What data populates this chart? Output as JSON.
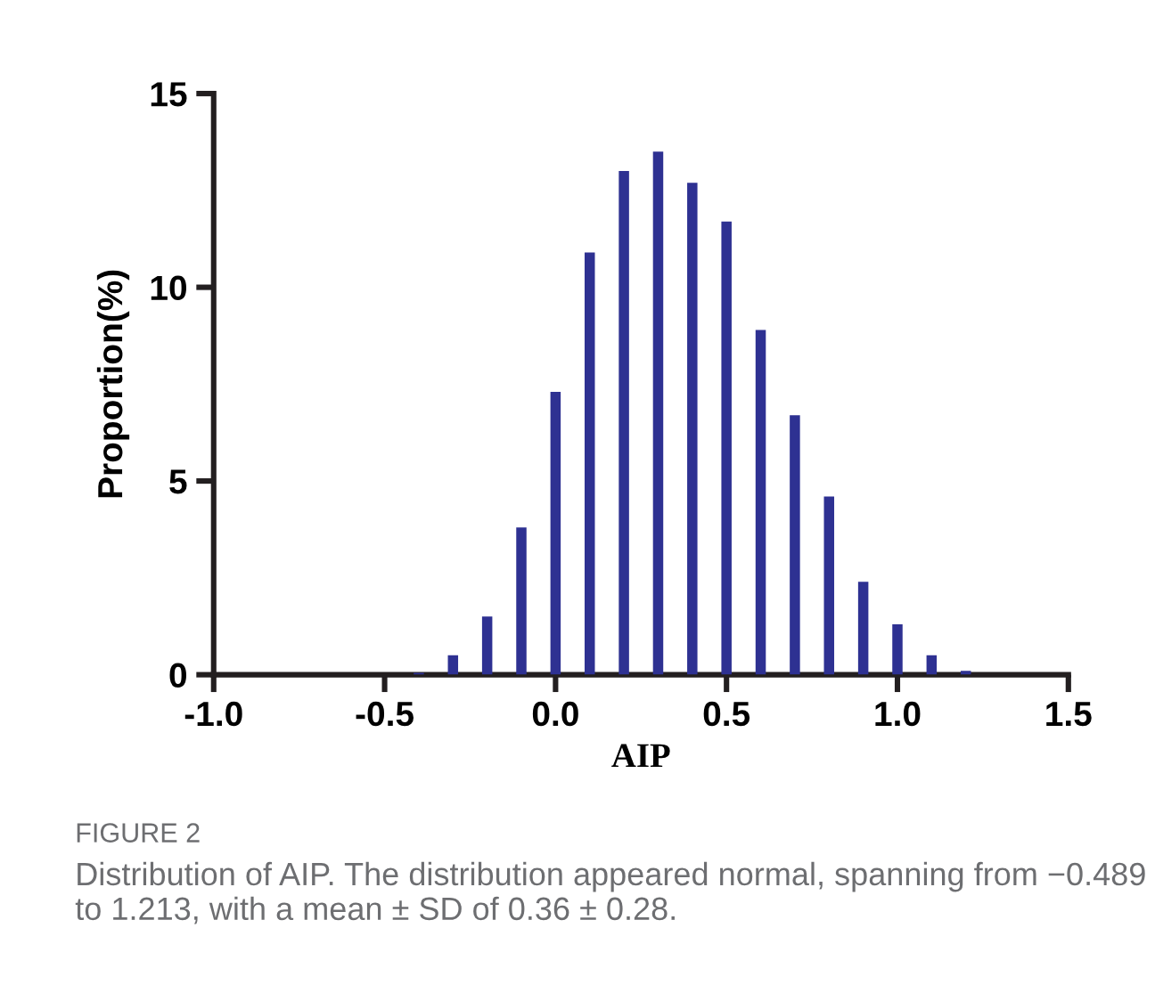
{
  "chart_data": {
    "type": "bar",
    "xlabel": "AIP",
    "ylabel": "Proportion(%)",
    "x": [
      -0.4,
      -0.3,
      -0.2,
      -0.1,
      0.0,
      0.1,
      0.2,
      0.3,
      0.4,
      0.5,
      0.6,
      0.7,
      0.8,
      0.9,
      1.0,
      1.1,
      1.2
    ],
    "values": [
      0.05,
      0.5,
      1.5,
      3.8,
      7.3,
      10.9,
      13.0,
      13.5,
      12.7,
      11.7,
      8.9,
      6.7,
      4.6,
      2.4,
      1.3,
      0.5,
      0.1
    ],
    "color": "#2e3192",
    "xlim": [
      -1.0,
      1.5
    ],
    "xticks": [
      {
        "value": -1.0,
        "label": "-1.0"
      },
      {
        "value": -0.5,
        "label": "-0.5"
      },
      {
        "value": 0.0,
        "label": "0.0"
      },
      {
        "value": 0.5,
        "label": "0.5"
      },
      {
        "value": 1.0,
        "label": "1.0"
      },
      {
        "value": 1.5,
        "label": "1.5"
      }
    ],
    "ylim": [
      0,
      15
    ],
    "yticks": [
      0,
      5,
      10,
      15
    ],
    "grid": false,
    "legend": false,
    "annotations": [
      "FIGURE 2",
      "Distribution of AIP. The distribution appeared normal, spanning from −0.489 to 1.213, with a mean ± SD of 0.36 ± 0.28."
    ]
  }
}
